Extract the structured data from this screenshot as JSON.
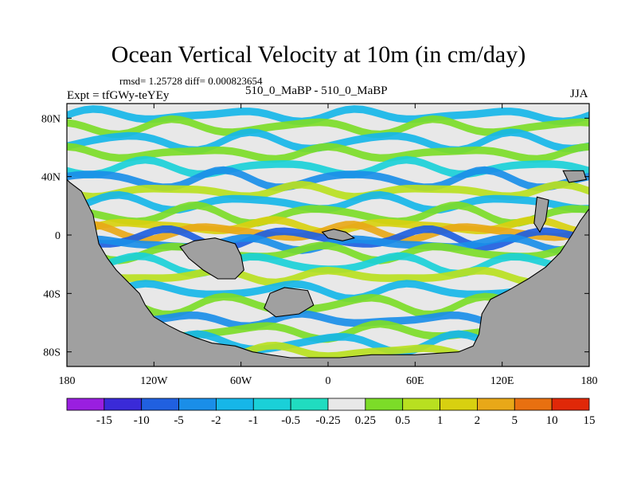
{
  "chart_data": {
    "type": "heatmap",
    "title": "Ocean Vertical Velocity at 10m (in cm/day)",
    "stats_text": "rmsd= 1.25728 diff= 0.000823654",
    "expt_label": "Expt = tfGWy-teYEy",
    "case_label": "510_0_MaBP - 510_0_MaBP",
    "season": "JJA",
    "x_range": [
      -180,
      180
    ],
    "y_range": [
      -90,
      90
    ],
    "x_ticks": [
      {
        "value": -180,
        "label": "180"
      },
      {
        "value": -120,
        "label": "120W"
      },
      {
        "value": -60,
        "label": "60W"
      },
      {
        "value": 0,
        "label": "0"
      },
      {
        "value": 60,
        "label": "60E"
      },
      {
        "value": 120,
        "label": "120E"
      },
      {
        "value": 180,
        "label": "180"
      }
    ],
    "y_ticks": [
      {
        "value": 80,
        "label": "80N"
      },
      {
        "value": 40,
        "label": "40N"
      },
      {
        "value": 0,
        "label": "0"
      },
      {
        "value": -40,
        "label": "40S"
      },
      {
        "value": -80,
        "label": "80S"
      }
    ],
    "colorbar": {
      "levels": [
        "-15",
        "-10",
        "-5",
        "-2",
        "-1",
        "-0.5",
        "-0.25",
        "0.25",
        "0.5",
        "1",
        "2",
        "5",
        "10",
        "15"
      ],
      "colors": [
        "#9a1fe0",
        "#3a2ad8",
        "#2060e0",
        "#1a8ee8",
        "#16b6e8",
        "#1ad0d8",
        "#20dcc0",
        "#e8e8e8",
        "#7cdc28",
        "#b8e020",
        "#d8d010",
        "#e8a818",
        "#e87010",
        "#e02808"
      ]
    },
    "land_color": "#a0a0a0",
    "zonal_bands": [
      {
        "lat": 82,
        "level": "-1"
      },
      {
        "lat": 74,
        "level": "0.5"
      },
      {
        "lat": 64,
        "level": "-1"
      },
      {
        "lat": 56,
        "level": "0.5"
      },
      {
        "lat": 46,
        "level": "-0.5"
      },
      {
        "lat": 38,
        "level": "-2"
      },
      {
        "lat": 30,
        "level": "1"
      },
      {
        "lat": 22,
        "level": "-1"
      },
      {
        "lat": 14,
        "level": "0.5"
      },
      {
        "lat": 6,
        "level": "2"
      },
      {
        "lat": 2,
        "level": "5"
      },
      {
        "lat": -2,
        "level": "-5"
      },
      {
        "lat": -6,
        "level": "-2"
      },
      {
        "lat": -12,
        "level": "0.5"
      },
      {
        "lat": -20,
        "level": "-0.5"
      },
      {
        "lat": -28,
        "level": "1"
      },
      {
        "lat": -38,
        "level": "-1"
      },
      {
        "lat": -48,
        "level": "0.5"
      },
      {
        "lat": -58,
        "level": "-2"
      },
      {
        "lat": -66,
        "level": "0.5"
      },
      {
        "lat": -74,
        "level": "-1"
      },
      {
        "lat": -80,
        "level": "1"
      }
    ],
    "land_masses": [
      {
        "name": "west-continent",
        "lon_lat": [
          [
            -180,
            38
          ],
          [
            -178,
            36
          ],
          [
            -170,
            30
          ],
          [
            -166,
            22
          ],
          [
            -162,
            14
          ],
          [
            -160,
            4
          ],
          [
            -158,
            -6
          ],
          [
            -152,
            -16
          ],
          [
            -146,
            -24
          ],
          [
            -138,
            -32
          ],
          [
            -130,
            -40
          ],
          [
            -126,
            -48
          ],
          [
            -120,
            -56
          ],
          [
            -110,
            -62
          ],
          [
            -102,
            -66
          ],
          [
            -92,
            -70
          ],
          [
            -80,
            -74
          ],
          [
            -64,
            -76
          ],
          [
            -52,
            -80
          ],
          [
            -40,
            -82
          ],
          [
            -26,
            -84
          ],
          [
            -10,
            -84
          ],
          [
            8,
            -84
          ],
          [
            30,
            -82
          ],
          [
            60,
            -82
          ],
          [
            90,
            -80
          ],
          [
            100,
            -76
          ],
          [
            104,
            -68
          ],
          [
            106,
            -54
          ],
          [
            112,
            -44
          ],
          [
            124,
            -38
          ],
          [
            138,
            -30
          ],
          [
            150,
            -22
          ],
          [
            160,
            -12
          ],
          [
            168,
            0
          ],
          [
            174,
            10
          ],
          [
            180,
            18
          ],
          [
            180,
            -90
          ],
          [
            -180,
            -90
          ]
        ]
      },
      {
        "name": "island-a",
        "lon_lat": [
          [
            -102,
            -8
          ],
          [
            -92,
            -4
          ],
          [
            -78,
            -2
          ],
          [
            -64,
            -6
          ],
          [
            -60,
            -14
          ],
          [
            -58,
            -24
          ],
          [
            -64,
            -30
          ],
          [
            -76,
            -30
          ],
          [
            -86,
            -24
          ],
          [
            -96,
            -16
          ]
        ]
      },
      {
        "name": "island-b",
        "lon_lat": [
          [
            -40,
            -40
          ],
          [
            -30,
            -36
          ],
          [
            -14,
            -38
          ],
          [
            -10,
            -48
          ],
          [
            -20,
            -54
          ],
          [
            -36,
            -56
          ],
          [
            -44,
            -50
          ]
        ]
      },
      {
        "name": "island-c",
        "lon_lat": [
          [
            144,
            26
          ],
          [
            152,
            24
          ],
          [
            150,
            10
          ],
          [
            146,
            2
          ],
          [
            142,
            8
          ]
        ]
      },
      {
        "name": "island-d",
        "lon_lat": [
          [
            162,
            44
          ],
          [
            176,
            44
          ],
          [
            178,
            38
          ],
          [
            166,
            36
          ]
        ]
      },
      {
        "name": "island-e",
        "lon_lat": [
          [
            -4,
            2
          ],
          [
            4,
            4
          ],
          [
            12,
            2
          ],
          [
            18,
            -2
          ],
          [
            10,
            -4
          ],
          [
            0,
            -2
          ]
        ]
      }
    ]
  }
}
